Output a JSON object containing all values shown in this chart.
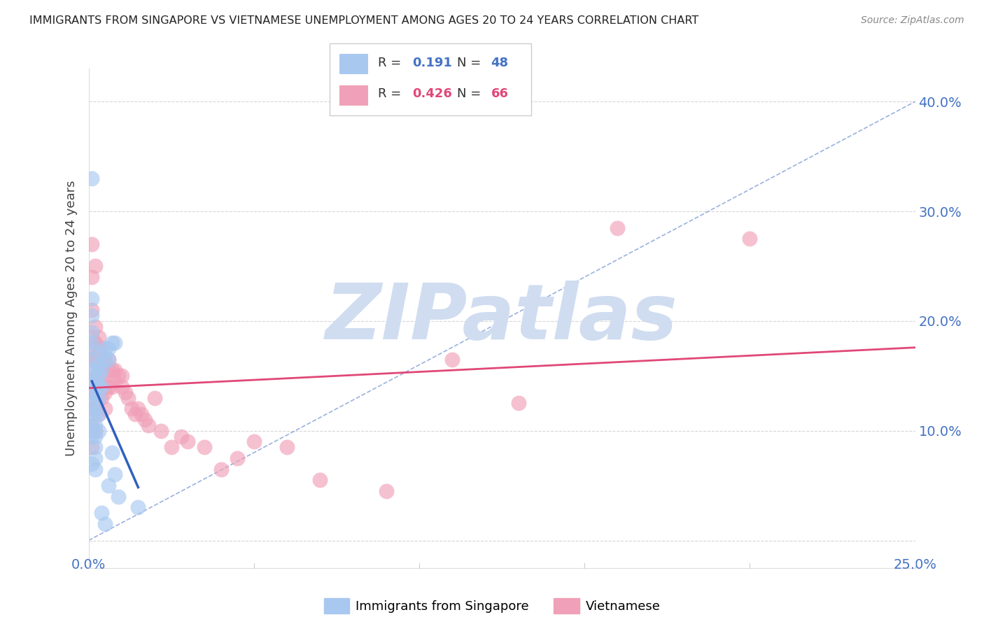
{
  "title": "IMMIGRANTS FROM SINGAPORE VS VIETNAMESE UNEMPLOYMENT AMONG AGES 20 TO 24 YEARS CORRELATION CHART",
  "source": "Source: ZipAtlas.com",
  "ylabel": "Unemployment Among Ages 20 to 24 years",
  "xlim": [
    0.0,
    0.25
  ],
  "ylim": [
    -0.025,
    0.43
  ],
  "yticks": [
    0.0,
    0.1,
    0.2,
    0.3,
    0.4
  ],
  "ytick_labels": [
    "",
    "10.0%",
    "20.0%",
    "30.0%",
    "40.0%"
  ],
  "xticks": [
    0.0,
    0.05,
    0.1,
    0.15,
    0.2,
    0.25
  ],
  "R_singapore": 0.191,
  "N_singapore": 48,
  "R_vietnamese": 0.426,
  "N_vietnamese": 66,
  "singapore_color": "#a8c8f0",
  "vietnamese_color": "#f0a0b8",
  "singapore_line_color": "#3060c0",
  "vietnamese_line_color": "#e04878",
  "diagonal_color": "#7090d0",
  "watermark": "ZIPatlas",
  "watermark_color": "#d0ddf0",
  "sg_x": [
    0.001,
    0.001,
    0.001,
    0.001,
    0.001,
    0.001,
    0.001,
    0.001,
    0.001,
    0.001,
    0.001,
    0.001,
    0.001,
    0.001,
    0.001,
    0.001,
    0.002,
    0.002,
    0.002,
    0.002,
    0.002,
    0.002,
    0.002,
    0.002,
    0.002,
    0.002,
    0.003,
    0.003,
    0.003,
    0.003,
    0.003,
    0.003,
    0.004,
    0.004,
    0.004,
    0.004,
    0.005,
    0.005,
    0.005,
    0.006,
    0.006,
    0.006,
    0.007,
    0.007,
    0.008,
    0.008,
    0.009,
    0.015
  ],
  "sg_y": [
    0.33,
    0.22,
    0.205,
    0.19,
    0.18,
    0.175,
    0.165,
    0.155,
    0.145,
    0.135,
    0.125,
    0.115,
    0.105,
    0.1,
    0.095,
    0.07,
    0.155,
    0.145,
    0.135,
    0.125,
    0.115,
    0.105,
    0.095,
    0.085,
    0.075,
    0.065,
    0.16,
    0.15,
    0.14,
    0.13,
    0.115,
    0.1,
    0.17,
    0.155,
    0.14,
    0.025,
    0.175,
    0.165,
    0.015,
    0.175,
    0.165,
    0.05,
    0.18,
    0.08,
    0.18,
    0.06,
    0.04,
    0.03
  ],
  "vn_x": [
    0.001,
    0.001,
    0.001,
    0.001,
    0.001,
    0.001,
    0.001,
    0.001,
    0.001,
    0.001,
    0.002,
    0.002,
    0.002,
    0.002,
    0.002,
    0.002,
    0.002,
    0.002,
    0.003,
    0.003,
    0.003,
    0.003,
    0.003,
    0.003,
    0.004,
    0.004,
    0.004,
    0.004,
    0.005,
    0.005,
    0.005,
    0.005,
    0.006,
    0.006,
    0.006,
    0.007,
    0.007,
    0.008,
    0.008,
    0.009,
    0.01,
    0.01,
    0.011,
    0.012,
    0.013,
    0.014,
    0.015,
    0.016,
    0.017,
    0.018,
    0.02,
    0.022,
    0.025,
    0.028,
    0.03,
    0.035,
    0.04,
    0.045,
    0.05,
    0.06,
    0.07,
    0.09,
    0.11,
    0.13,
    0.16,
    0.2
  ],
  "vn_y": [
    0.27,
    0.24,
    0.21,
    0.185,
    0.175,
    0.165,
    0.135,
    0.12,
    0.105,
    0.085,
    0.25,
    0.195,
    0.18,
    0.165,
    0.15,
    0.135,
    0.12,
    0.1,
    0.185,
    0.175,
    0.16,
    0.145,
    0.13,
    0.115,
    0.175,
    0.16,
    0.145,
    0.13,
    0.165,
    0.15,
    0.135,
    0.12,
    0.165,
    0.155,
    0.14,
    0.155,
    0.14,
    0.155,
    0.145,
    0.15,
    0.15,
    0.14,
    0.135,
    0.13,
    0.12,
    0.115,
    0.12,
    0.115,
    0.11,
    0.105,
    0.13,
    0.1,
    0.085,
    0.095,
    0.09,
    0.085,
    0.065,
    0.075,
    0.09,
    0.085,
    0.055,
    0.045,
    0.165,
    0.125,
    0.285,
    0.275
  ]
}
